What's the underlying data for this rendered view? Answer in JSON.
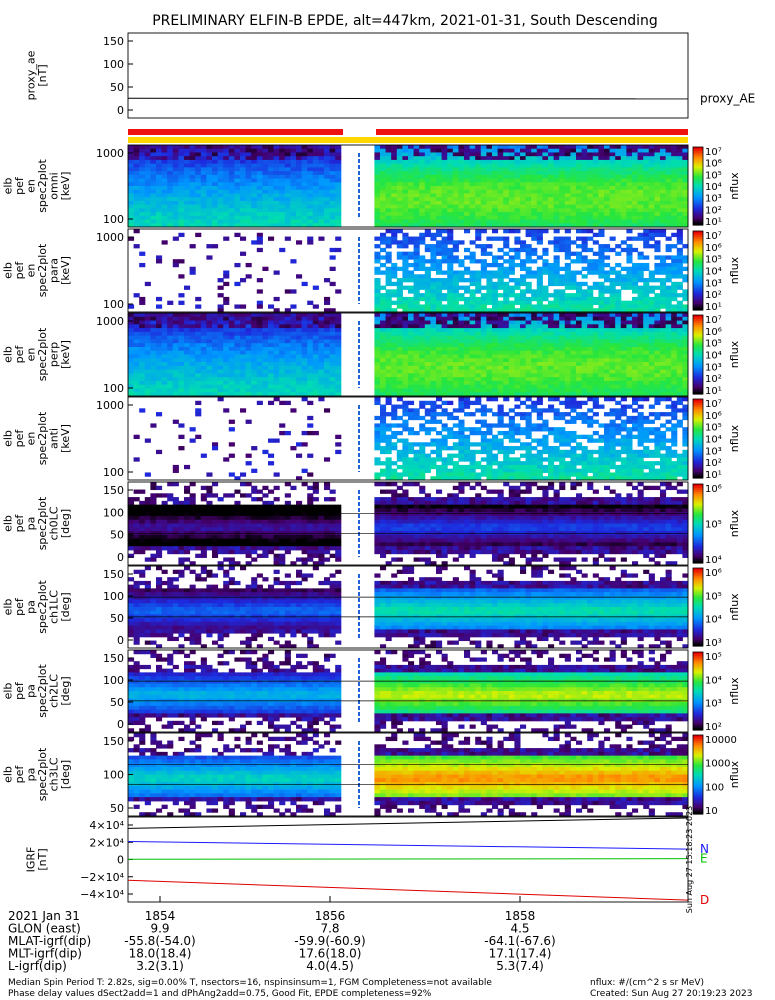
{
  "title": "PRELIMINARY ELFIN-B EPDE, alt=447km, 2021-01-31, South Descending",
  "chart_data": {
    "type": "heatmap",
    "x_ticks": [
      "1854",
      "1856",
      "1858"
    ],
    "panels": [
      {
        "id": "proxy_ae",
        "ylabel": [
          "proxy_ae",
          "[nT]"
        ],
        "yticks": [
          "150",
          "100",
          "50",
          "0"
        ],
        "right_label": "proxy_AE",
        "line_value": 35
      },
      {
        "id": "en_omni",
        "ylabel": [
          "elb",
          "pef",
          "en",
          "spec2plot",
          "omni",
          "[keV]"
        ],
        "yticks": [
          "1000",
          "100"
        ],
        "cbar_ticks": [
          "10⁷",
          "10⁶",
          "10⁵",
          "10⁴",
          "10³",
          "10²",
          "10¹"
        ],
        "cbar_label": "nflux"
      },
      {
        "id": "en_para",
        "ylabel": [
          "elb",
          "pef",
          "en",
          "spec2plot",
          "para",
          "[keV]"
        ],
        "yticks": [
          "1000",
          "100"
        ],
        "cbar_ticks": [
          "10⁷",
          "10⁶",
          "10⁵",
          "10⁴",
          "10³",
          "10²",
          "10¹"
        ],
        "cbar_label": "nflux"
      },
      {
        "id": "en_perp",
        "ylabel": [
          "elb",
          "pef",
          "en",
          "spec2plot",
          "perp",
          "[keV]"
        ],
        "yticks": [
          "1000",
          "100"
        ],
        "cbar_ticks": [
          "10⁷",
          "10⁶",
          "10⁵",
          "10⁴",
          "10³",
          "10²",
          "10¹"
        ],
        "cbar_label": "nflux"
      },
      {
        "id": "en_anti",
        "ylabel": [
          "elb",
          "pef",
          "en",
          "spec2plot",
          "anti",
          "[keV]"
        ],
        "yticks": [
          "1000",
          "100"
        ],
        "cbar_ticks": [
          "10⁷",
          "10⁶",
          "10⁵",
          "10⁴",
          "10³",
          "10²",
          "10¹"
        ],
        "cbar_label": "nflux"
      },
      {
        "id": "pa_ch0",
        "ylabel": [
          "elb",
          "pef",
          "pa",
          "spec2plot",
          "ch0LC",
          "[deg]"
        ],
        "yticks": [
          "150",
          "100",
          "50",
          "0"
        ],
        "cbar_ticks": [
          "10⁶",
          "10⁵",
          "10⁴"
        ],
        "cbar_label": "nflux"
      },
      {
        "id": "pa_ch1",
        "ylabel": [
          "elb",
          "pef",
          "pa",
          "spec2plot",
          "ch1LC",
          "[deg]"
        ],
        "yticks": [
          "150",
          "100",
          "50",
          "0"
        ],
        "cbar_ticks": [
          "10⁶",
          "10⁵",
          "10⁴",
          "10³"
        ],
        "cbar_label": "nflux"
      },
      {
        "id": "pa_ch2",
        "ylabel": [
          "elb",
          "pef",
          "pa",
          "spec2plot",
          "ch2LC",
          "[deg]"
        ],
        "yticks": [
          "150",
          "100",
          "50",
          "0"
        ],
        "cbar_ticks": [
          "10⁵",
          "10⁴",
          "10³",
          "10²"
        ],
        "cbar_label": "nflux"
      },
      {
        "id": "pa_ch3",
        "ylabel": [
          "elb",
          "pef",
          "pa",
          "spec2plot",
          "ch3LC",
          "[deg]"
        ],
        "yticks": [
          "150",
          "100",
          "50"
        ],
        "cbar_ticks": [
          "10000",
          "1000",
          "100",
          "10"
        ],
        "cbar_label": "nflux"
      },
      {
        "id": "igrf",
        "ylabel": [
          "IGRF",
          "[nT]"
        ],
        "yticks": [
          "4×10⁴",
          "2×10⁴",
          "0",
          "−2×10⁴",
          "−4×10⁴"
        ],
        "series": [
          {
            "name": "N",
            "color": "#1a1aff",
            "values": [
              19000,
              11000
            ]
          },
          {
            "name": "E",
            "color": "#00c000",
            "values": [
              200,
              900
            ]
          },
          {
            "name": "D",
            "color": "#e00000",
            "values": [
              -22000,
              -43000
            ]
          },
          {
            "name": "",
            "color": "#000000",
            "values": [
              33000,
              44000
            ]
          }
        ],
        "ylim": [
          -45000,
          45000
        ]
      }
    ],
    "footer_rows": [
      {
        "label": "2021 Jan 31",
        "values": [
          "1854",
          "1856",
          "1858"
        ]
      },
      {
        "label": "GLON (east)",
        "values": [
          "9.9",
          "7.8",
          "4.5"
        ]
      },
      {
        "label": "MLAT-igrf(dip)",
        "values": [
          "-55.8(-54.0)",
          "-59.9(-60.9)",
          "-64.1(-67.6)"
        ]
      },
      {
        "label": "MLT-igrf(dip)",
        "values": [
          "18.0(18.4)",
          "17.6(18.0)",
          "17.1(17.4)"
        ]
      },
      {
        "label": "L-igrf(dip)",
        "values": [
          "3.2(3.1)",
          "4.0(4.5)",
          "5.3(7.4)"
        ]
      }
    ],
    "notes_left": [
      "Median Spin Period T: 2.82s, sig=0.00% T, nsectors=16, nspinsinsum=1, FGM Completeness=not available",
      "Phase delay values dSect2add=1 and dPhAng2add=0.75, Good Fit, EPDE completeness=92%"
    ],
    "notes_right": [
      "nflux: #/(cm^2 s sr MeV)",
      "Created: Sun Aug 27 20:19:23 2023"
    ],
    "side_stamp": "Sun Aug 27 15:18:23 2023",
    "colors": {
      "bar_red": "#ee1111",
      "bar_yellow": "#ffd700"
    }
  }
}
